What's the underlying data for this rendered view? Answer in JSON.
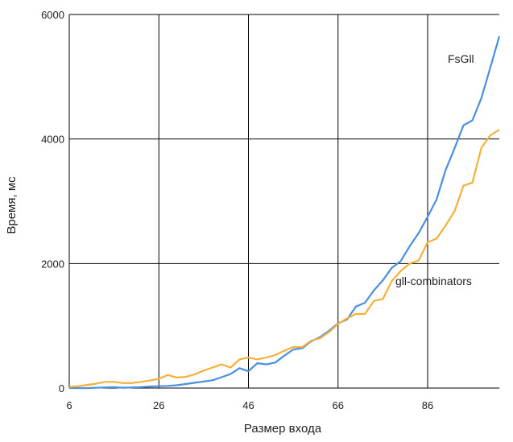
{
  "chart_data": {
    "type": "line",
    "xlabel": "Размер входа",
    "ylabel": "Время, мс",
    "xlim": [
      6,
      102
    ],
    "ylim": [
      0,
      6000
    ],
    "x_ticks": [
      "6",
      "26",
      "46",
      "66",
      "86"
    ],
    "x_tick_values": [
      6,
      26,
      46,
      66,
      86
    ],
    "y_ticks": [
      "0",
      "2000",
      "4000",
      "6000"
    ],
    "y_tick_values": [
      0,
      2000,
      4000,
      6000
    ],
    "grid": true,
    "series": [
      {
        "name": "FsGll",
        "color": "#4a8fe0",
        "x": [
          6,
          8,
          10,
          12,
          14,
          16,
          18,
          20,
          22,
          24,
          26,
          28,
          30,
          32,
          34,
          36,
          38,
          40,
          42,
          44,
          46,
          48,
          50,
          52,
          54,
          56,
          58,
          60,
          62,
          64,
          66,
          68,
          70,
          72,
          74,
          76,
          78,
          80,
          82,
          84,
          86,
          88,
          90,
          92,
          94,
          96,
          98,
          100,
          102
        ],
        "y": [
          0,
          0,
          0,
          5,
          10,
          15,
          5,
          10,
          15,
          25,
          30,
          35,
          45,
          65,
          85,
          105,
          125,
          175,
          225,
          320,
          270,
          400,
          380,
          410,
          520,
          620,
          640,
          750,
          820,
          920,
          1040,
          1100,
          1310,
          1370,
          1570,
          1730,
          1930,
          2040,
          2280,
          2490,
          2750,
          3030,
          3500,
          3850,
          4220,
          4300,
          4660,
          5150,
          5650
        ]
      },
      {
        "name": "gll-combinators",
        "color": "#f5b03b",
        "x": [
          6,
          8,
          10,
          12,
          14,
          16,
          18,
          20,
          22,
          24,
          26,
          28,
          30,
          32,
          34,
          36,
          38,
          40,
          42,
          44,
          46,
          48,
          50,
          52,
          54,
          56,
          58,
          60,
          62,
          64,
          66,
          68,
          70,
          72,
          74,
          76,
          78,
          80,
          82,
          84,
          86,
          88,
          90,
          92,
          94,
          96,
          98,
          100,
          102
        ],
        "y": [
          20,
          30,
          50,
          70,
          100,
          100,
          80,
          80,
          100,
          120,
          150,
          210,
          170,
          180,
          220,
          280,
          330,
          380,
          330,
          460,
          490,
          460,
          490,
          530,
          600,
          660,
          660,
          760,
          800,
          900,
          1030,
          1120,
          1190,
          1190,
          1400,
          1430,
          1720,
          1880,
          2000,
          2050,
          2340,
          2400,
          2610,
          2840,
          3250,
          3300,
          3860,
          4060,
          4150
        ]
      }
    ],
    "annotations": [
      "FsGll",
      "gll-combinators"
    ]
  }
}
